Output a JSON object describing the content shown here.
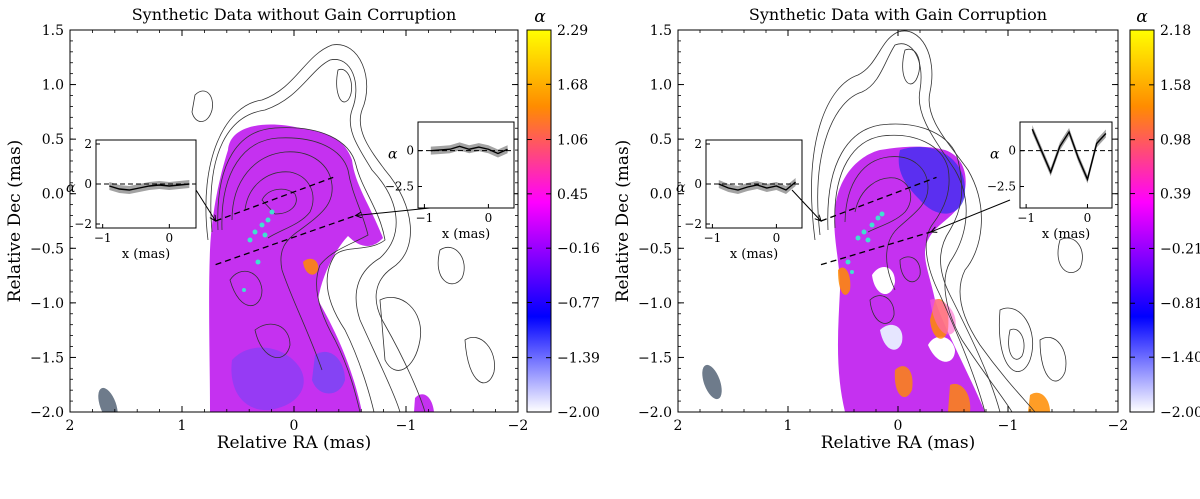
{
  "chart_data": [
    {
      "type": "heatmap",
      "title": "Synthetic Data without Gain Corruption",
      "xlabel": "Relative RA (mas)",
      "ylabel": "Relative Dec (mas)",
      "xlim": [
        2,
        -2
      ],
      "ylim": [
        -2.0,
        1.5
      ],
      "x_ticks": [
        2,
        1,
        0,
        -1,
        -2
      ],
      "y_ticks": [
        1.5,
        1.0,
        0.5,
        0.0,
        -0.5,
        -1.0,
        -1.5,
        -2.0
      ],
      "colorbar": {
        "label": "α",
        "ticks": [
          2.29,
          1.68,
          1.06,
          0.45,
          -0.16,
          -0.77,
          -1.39,
          -2.0
        ],
        "range": [
          -2.0,
          2.29
        ]
      },
      "slices": [
        {
          "from": [
            0.7,
            -0.25
          ],
          "to": [
            -0.35,
            0.15
          ]
        },
        {
          "from": [
            0.7,
            -0.65
          ],
          "to": [
            -0.55,
            -0.2
          ]
        }
      ],
      "insets": [
        {
          "ylabel": "α",
          "xlabel": "x (mas)",
          "x_ticks": [
            -1,
            0
          ],
          "y_ticks": [
            2,
            0,
            -2
          ],
          "xlim": [
            -1.1,
            0.4
          ],
          "ylim": [
            -2.2,
            2.2
          ],
          "profile_x": [
            -0.9,
            -0.75,
            -0.6,
            -0.45,
            -0.3,
            -0.15,
            0.0,
            0.15,
            0.3
          ],
          "profile_y": [
            -0.1,
            -0.25,
            -0.3,
            -0.2,
            -0.1,
            -0.05,
            -0.1,
            -0.05,
            0.0
          ]
        },
        {
          "ylabel": "α",
          "xlabel": "x (mas)",
          "x_ticks": [
            -1,
            0
          ],
          "y_ticks": [
            0.0,
            -2.5
          ],
          "xlim": [
            -1.1,
            0.4
          ],
          "ylim": [
            -4.0,
            2.0
          ],
          "profile_x": [
            -0.9,
            -0.75,
            -0.6,
            -0.45,
            -0.3,
            -0.15,
            0.0,
            0.15,
            0.3
          ],
          "profile_y": [
            0.0,
            0.05,
            0.1,
            0.3,
            0.1,
            0.25,
            0.1,
            -0.2,
            0.1
          ]
        }
      ]
    },
    {
      "type": "heatmap",
      "title": "Synthetic Data with Gain Corruption",
      "xlabel": "Relative RA (mas)",
      "ylabel": "Relative Dec (mas)",
      "xlim": [
        2,
        -2
      ],
      "ylim": [
        -2.0,
        1.5
      ],
      "x_ticks": [
        2,
        1,
        0,
        -1,
        -2
      ],
      "y_ticks": [
        1.5,
        1.0,
        0.5,
        0.0,
        -0.5,
        -1.0,
        -1.5,
        -2.0
      ],
      "colorbar": {
        "label": "α",
        "ticks": [
          2.18,
          1.58,
          0.98,
          0.39,
          -0.21,
          -0.81,
          -1.4,
          -2.0
        ],
        "range": [
          -2.0,
          2.18
        ]
      },
      "slices": [
        {
          "from": [
            0.7,
            -0.25
          ],
          "to": [
            -0.35,
            0.15
          ]
        },
        {
          "from": [
            0.7,
            -0.65
          ],
          "to": [
            -0.3,
            -0.35
          ]
        }
      ],
      "insets": [
        {
          "ylabel": "α",
          "xlabel": "x (mas)",
          "x_ticks": [
            -1,
            0
          ],
          "y_ticks": [
            2,
            0,
            -2
          ],
          "xlim": [
            -1.1,
            0.4
          ],
          "ylim": [
            -2.2,
            2.2
          ],
          "profile_x": [
            -0.9,
            -0.75,
            -0.6,
            -0.45,
            -0.3,
            -0.15,
            0.0,
            0.15,
            0.3
          ],
          "profile_y": [
            0.0,
            -0.2,
            -0.3,
            -0.15,
            -0.05,
            -0.2,
            -0.1,
            -0.3,
            0.1
          ]
        },
        {
          "ylabel": "α",
          "xlabel": "x (mas)",
          "x_ticks": [
            -1,
            0
          ],
          "y_ticks": [
            0.0,
            -2.5
          ],
          "xlim": [
            -1.1,
            0.4
          ],
          "ylim": [
            -4.0,
            2.0
          ],
          "profile_x": [
            -0.9,
            -0.75,
            -0.6,
            -0.45,
            -0.3,
            -0.15,
            0.0,
            0.15,
            0.3
          ],
          "profile_y": [
            1.5,
            0.0,
            -1.5,
            0.3,
            1.3,
            -0.5,
            -2.0,
            0.5,
            1.2
          ]
        }
      ]
    }
  ],
  "colors": {
    "colormap": [
      "#ffffff",
      "#0000ff",
      "#ff00ff",
      "#ff8c00",
      "#ffff00"
    ],
    "contour": "#333333",
    "beam": "#6e7b8b",
    "markers": "#40e0d0",
    "profile_band": "#8c8c8c"
  }
}
